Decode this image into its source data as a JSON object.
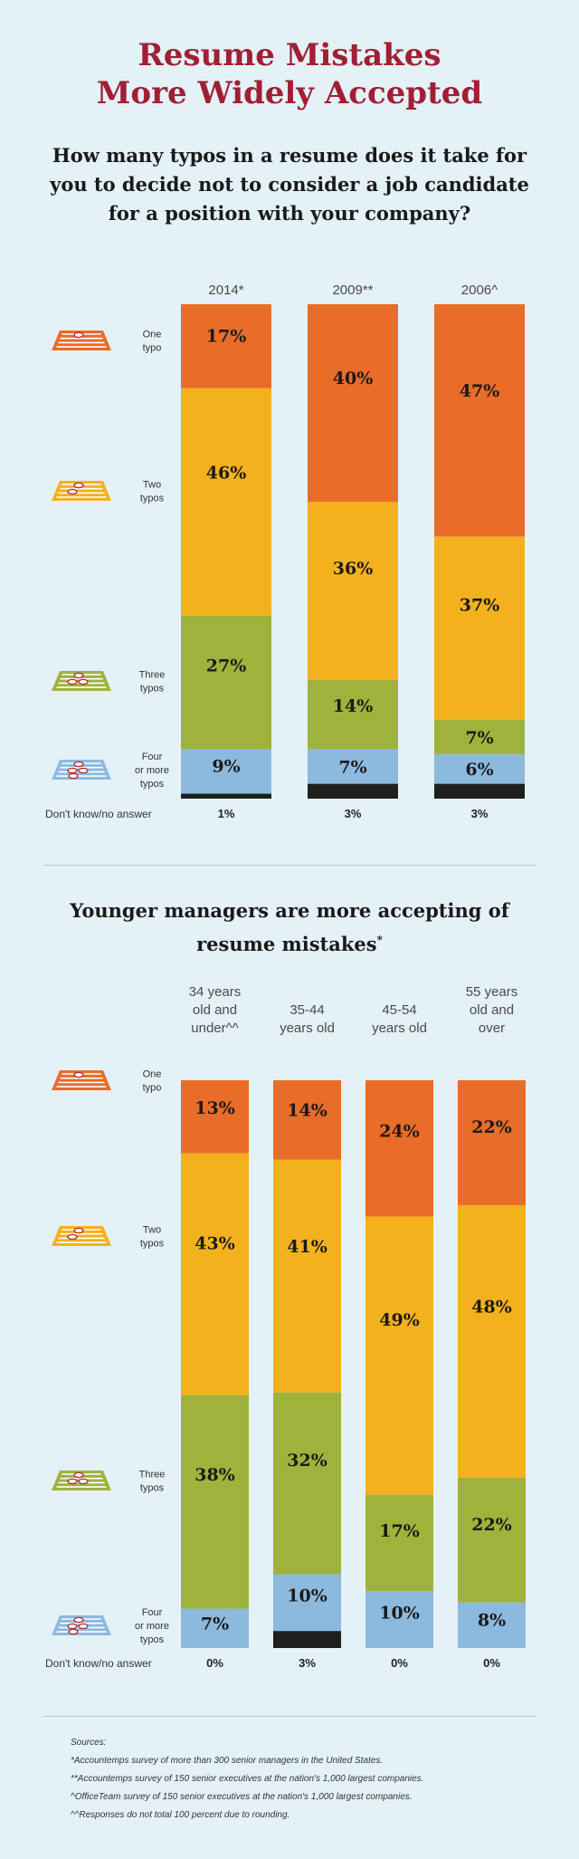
{
  "title_lines": [
    "Resume Mistakes",
    "More Widely Accepted"
  ],
  "question_text": "How many typos in a resume does it take for you to decide not to consider a job candidate for a position with your company?",
  "subtitle_text": "Younger managers are more accepting of resume mistakes",
  "subtitle_mark": "*",
  "colors": {
    "one": "#e96c28",
    "two": "#f4b11e",
    "three": "#9fb33c",
    "four": "#8cbadf",
    "dk": "#1f1f1f",
    "title": "#a11f35"
  },
  "legend_labels": {
    "one": [
      "One",
      "typo"
    ],
    "two": [
      "Two",
      "typos"
    ],
    "three": [
      "Three",
      "typos"
    ],
    "four": [
      "Four",
      "or more",
      "typos"
    ]
  },
  "dk_label": "Don't know/no answer",
  "chart_data": [
    {
      "type": "bar",
      "stacked": true,
      "categories": [
        "2014*",
        "2009**",
        "2006^"
      ],
      "series": [
        {
          "name": "One typo",
          "values": [
            17,
            40,
            47
          ]
        },
        {
          "name": "Two typos",
          "values": [
            46,
            36,
            37
          ]
        },
        {
          "name": "Three typos",
          "values": [
            27,
            14,
            7
          ]
        },
        {
          "name": "Four or more typos",
          "values": [
            9,
            7,
            6
          ]
        },
        {
          "name": "Don't know/no answer",
          "values": [
            1,
            3,
            3
          ]
        }
      ],
      "ylim": [
        0,
        100
      ]
    },
    {
      "type": "bar",
      "stacked": true,
      "categories": [
        [
          "34 years",
          "old and",
          "under^^"
        ],
        [
          "35-44",
          "years old"
        ],
        [
          "45-54",
          "years old"
        ],
        [
          "55 years",
          "old and",
          "over"
        ]
      ],
      "series": [
        {
          "name": "One typo",
          "values": [
            13,
            14,
            24,
            22
          ]
        },
        {
          "name": "Two typos",
          "values": [
            43,
            41,
            49,
            48
          ]
        },
        {
          "name": "Three typos",
          "values": [
            38,
            32,
            17,
            22
          ]
        },
        {
          "name": "Four or more typos",
          "values": [
            7,
            10,
            10,
            8
          ]
        },
        {
          "name": "Don't know/no answer",
          "values": [
            0,
            3,
            0,
            0
          ]
        }
      ],
      "ylim": [
        0,
        100
      ]
    }
  ],
  "sources": {
    "heading": "Sources:",
    "lines": [
      "*Accountemps survey of more than 300 senior managers in the United States.",
      "**Accountemps survey of 150 senior executives at the nation's 1,000 largest companies.",
      "^OfficeTeam survey of 150 senior executives at the nation's 1,000 largest companies.",
      "^^Responses do not total 100 percent due to rounding."
    ]
  }
}
